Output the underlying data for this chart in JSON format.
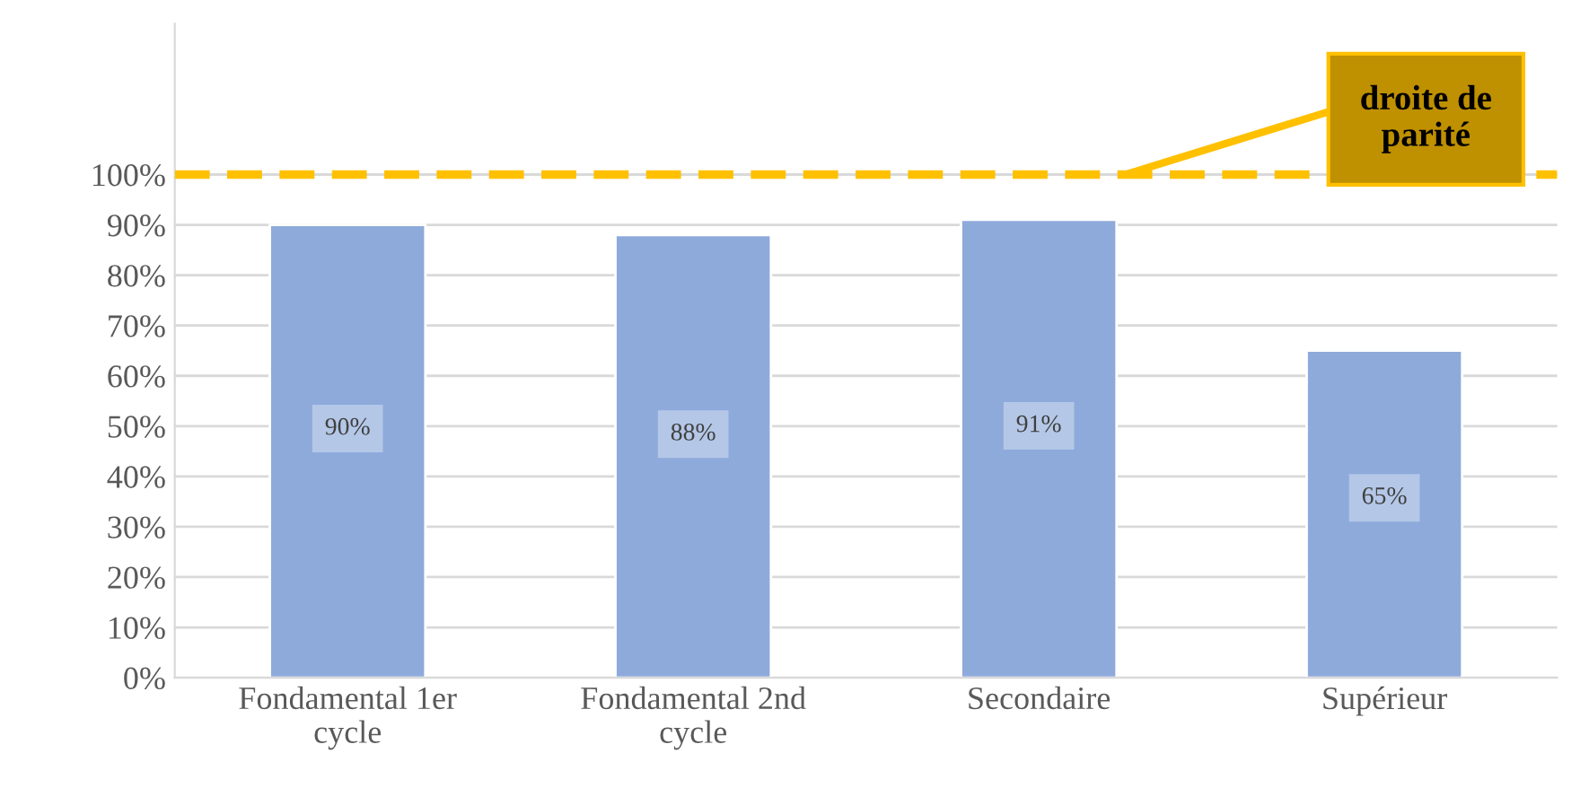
{
  "chart_data": {
    "type": "bar",
    "categories": [
      "Fondamental 1er\ncycle",
      "Fondamental 2nd\ncycle",
      "Secondaire",
      "Supérieur"
    ],
    "series": [
      {
        "color": "#8eaadb",
        "values": [
          90,
          88,
          91,
          65
        ]
      }
    ],
    "value_labels": [
      "90%",
      "88%",
      "91%",
      "65%"
    ],
    "ylim": [
      0,
      130
    ],
    "yticks": [
      {
        "value": 0,
        "label": "0%"
      },
      {
        "value": 10,
        "label": "10%"
      },
      {
        "value": 20,
        "label": "20%"
      },
      {
        "value": 30,
        "label": "30%"
      },
      {
        "value": 40,
        "label": "40%"
      },
      {
        "value": 50,
        "label": "50%"
      },
      {
        "value": 60,
        "label": "60%"
      },
      {
        "value": 70,
        "label": "70%"
      },
      {
        "value": 80,
        "label": "80%"
      },
      {
        "value": 90,
        "label": "90%"
      },
      {
        "value": 100,
        "label": "100%"
      }
    ],
    "grid": "y",
    "ref_lines": [
      {
        "axis": "y",
        "value": 100,
        "label": "droite de\nparité",
        "color": "#ffc000",
        "line_style": "dashed"
      }
    ]
  }
}
